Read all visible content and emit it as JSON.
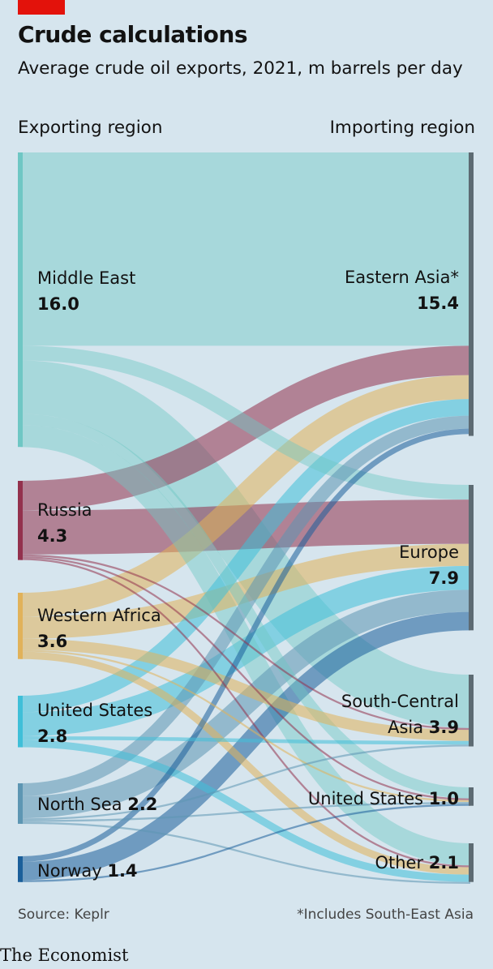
{
  "header": {
    "title": "Crude calculations",
    "subtitle": "Average crude oil exports, 2021, m barrels per day",
    "left_heading": "Exporting region",
    "right_heading": "Importing region"
  },
  "footer": {
    "source": "Source: Keplr",
    "note": "*Includes South-East Asia",
    "logo": "The Economist"
  },
  "colors": {
    "background": "#d6e5ee",
    "accent_red": "#e3120b"
  },
  "chart_data": {
    "type": "sankey",
    "title": "Crude calculations",
    "subtitle": "Average crude oil exports, 2021, m barrels per day",
    "units": "m barrels per day",
    "left_nodes": [
      {
        "id": "me",
        "name": "Middle East",
        "value": 16.0,
        "value_label": "16.0",
        "color": "#6fc7c4"
      },
      {
        "id": "ru",
        "name": "Russia",
        "value": 4.3,
        "value_label": "4.3",
        "color": "#93314d"
      },
      {
        "id": "wa",
        "name": "Western Africa",
        "value": 3.6,
        "value_label": "3.6",
        "color": "#e1b25a"
      },
      {
        "id": "us",
        "name": "United States",
        "value": 2.8,
        "value_label": "2.8",
        "color": "#3fbfd8"
      },
      {
        "id": "ns",
        "name": "North Sea",
        "value": 2.2,
        "value_label": "2.2",
        "color": "#5d96b3"
      },
      {
        "id": "no",
        "name": "Norway",
        "value": 1.4,
        "value_label": "1.4",
        "color": "#1b5f9a"
      }
    ],
    "right_nodes": [
      {
        "id": "ea",
        "name": "Eastern Asia*",
        "value": 15.4,
        "value_label": "15.4"
      },
      {
        "id": "eu",
        "name": "Europe",
        "value": 7.9,
        "value_label": "7.9"
      },
      {
        "id": "sc",
        "name": "South-Central Asia",
        "name_line1": "South-Central",
        "name_line2": "Asia",
        "value": 3.9,
        "value_label": "3.9"
      },
      {
        "id": "usi",
        "name": "United States",
        "value": 1.0,
        "value_label": "1.0"
      },
      {
        "id": "ot",
        "name": "Other",
        "value": 2.1,
        "value_label": "2.1"
      }
    ],
    "flows": [
      {
        "from": "me",
        "to": "ea",
        "value": 10.5
      },
      {
        "from": "me",
        "to": "eu",
        "value": 0.8
      },
      {
        "from": "me",
        "to": "sc",
        "value": 2.9
      },
      {
        "from": "me",
        "to": "usi",
        "value": 0.6
      },
      {
        "from": "me",
        "to": "ot",
        "value": 1.2
      },
      {
        "from": "ru",
        "to": "ea",
        "value": 1.6
      },
      {
        "from": "ru",
        "to": "eu",
        "value": 2.4
      },
      {
        "from": "ru",
        "to": "sc",
        "value": 0.1
      },
      {
        "from": "ru",
        "to": "usi",
        "value": 0.1
      },
      {
        "from": "ru",
        "to": "ot",
        "value": 0.1
      },
      {
        "from": "wa",
        "to": "ea",
        "value": 1.3
      },
      {
        "from": "wa",
        "to": "eu",
        "value": 1.2
      },
      {
        "from": "wa",
        "to": "sc",
        "value": 0.6
      },
      {
        "from": "wa",
        "to": "usi",
        "value": 0.1
      },
      {
        "from": "wa",
        "to": "ot",
        "value": 0.4
      },
      {
        "from": "us",
        "to": "ea",
        "value": 0.9
      },
      {
        "from": "us",
        "to": "eu",
        "value": 1.3
      },
      {
        "from": "us",
        "to": "sc",
        "value": 0.2
      },
      {
        "from": "us",
        "to": "ot",
        "value": 0.4
      },
      {
        "from": "ns",
        "to": "ea",
        "value": 0.7
      },
      {
        "from": "ns",
        "to": "eu",
        "value": 1.2
      },
      {
        "from": "ns",
        "to": "sc",
        "value": 0.1
      },
      {
        "from": "ns",
        "to": "usi",
        "value": 0.1
      },
      {
        "from": "ns",
        "to": "ot",
        "value": 0.1
      },
      {
        "from": "no",
        "to": "ea",
        "value": 0.3
      },
      {
        "from": "no",
        "to": "eu",
        "value": 1.0
      },
      {
        "from": "no",
        "to": "usi",
        "value": 0.1
      }
    ]
  }
}
